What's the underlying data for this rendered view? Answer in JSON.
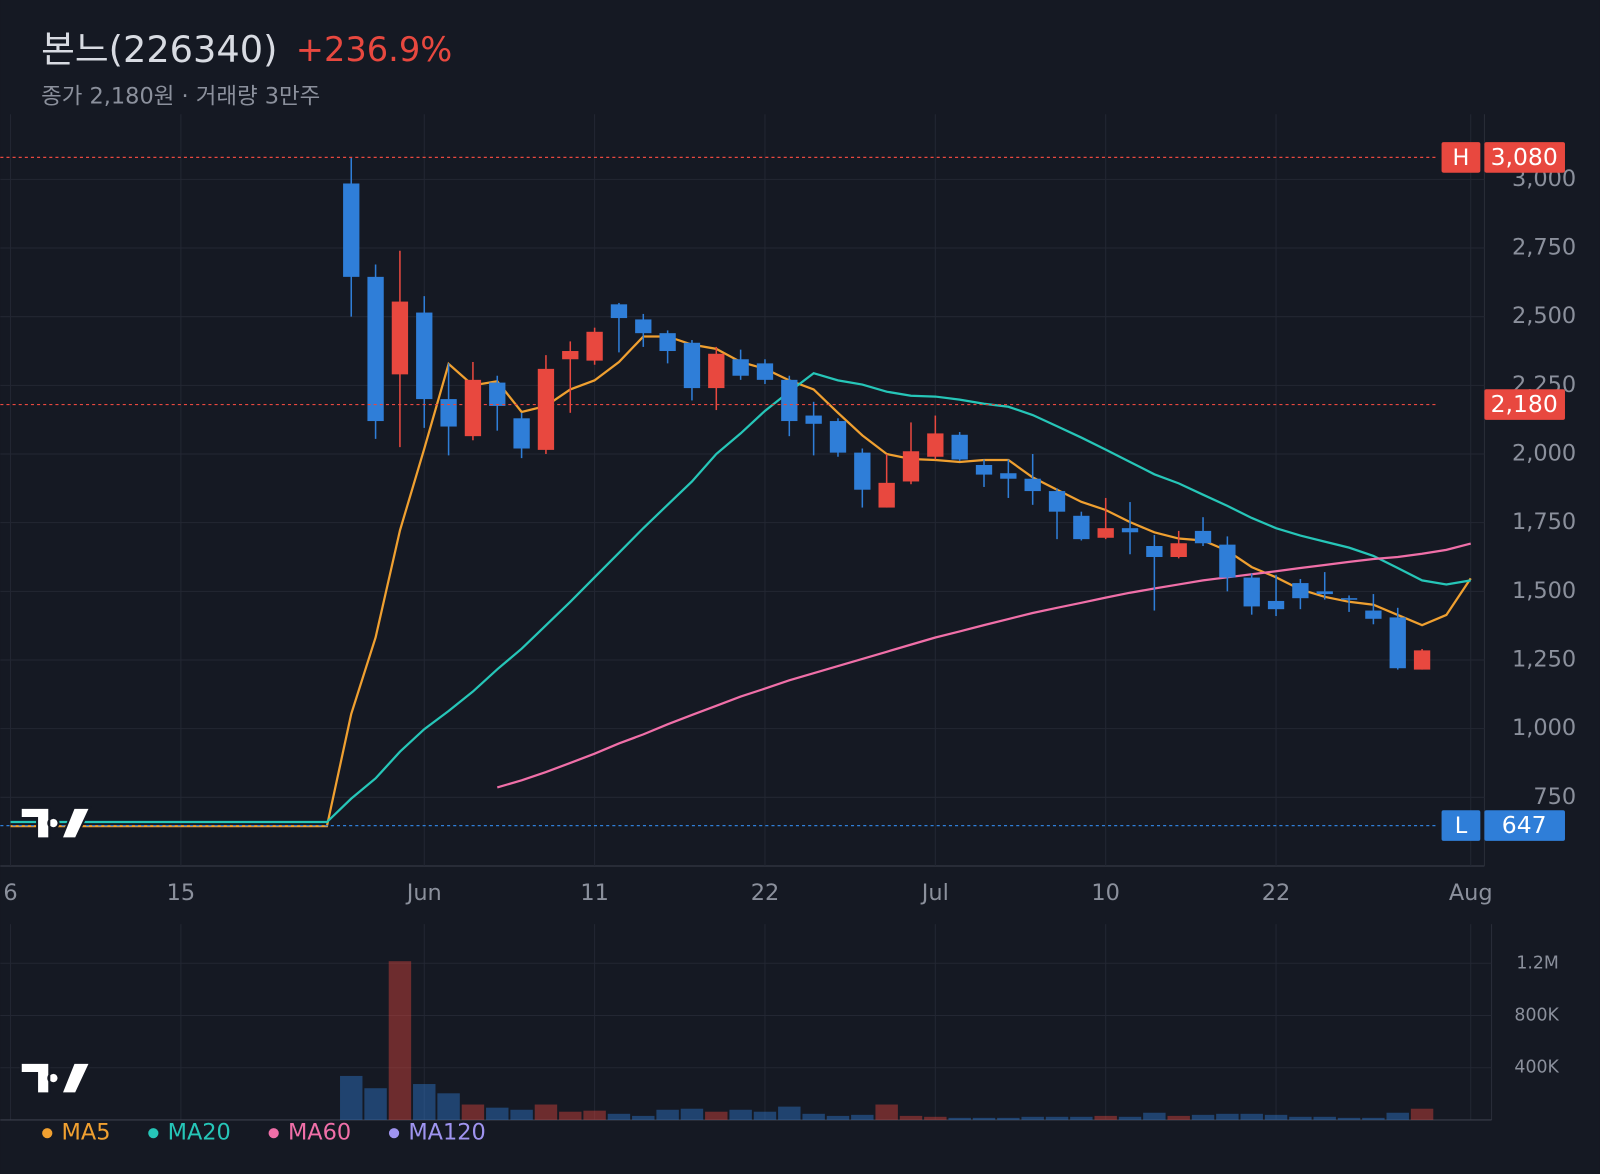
{
  "chart_data": [
    {
      "type": "candlestick",
      "title": "본느(226340)",
      "change": "+236.9%",
      "subtitle": "종가 2,180원 · 거래량 3만주",
      "up_color": "#e8483f",
      "down_color": "#2f7ed8",
      "categories": [
        "6",
        null,
        null,
        null,
        null,
        null,
        null,
        "15",
        null,
        null,
        null,
        null,
        null,
        null,
        null,
        null,
        null,
        "Jun",
        null,
        null,
        null,
        null,
        null,
        null,
        "11",
        null,
        null,
        null,
        null,
        null,
        null,
        "22",
        null,
        null,
        null,
        null,
        null,
        null,
        "Jul",
        null,
        null,
        null,
        null,
        null,
        null,
        "10",
        null,
        null,
        null,
        null,
        null,
        null,
        "22",
        null,
        null,
        null,
        null,
        null,
        null,
        null,
        "Aug"
      ],
      "open": [
        null,
        null,
        null,
        null,
        null,
        null,
        null,
        null,
        null,
        null,
        null,
        null,
        null,
        null,
        2985,
        2645,
        2290,
        2515,
        2200,
        2065,
        2260,
        2130,
        2015,
        2345,
        2340,
        2545,
        2490,
        2440,
        2405,
        2240,
        2345,
        2330,
        2270,
        2140,
        2120,
        2005,
        1805,
        1900,
        1990,
        2070,
        1960,
        1930,
        1910,
        1865,
        1775,
        1695,
        1730,
        1665,
        1625,
        1720,
        1670,
        1550,
        1465,
        1530,
        1500,
        1475,
        1430,
        1405,
        1215,
        null,
        null
      ],
      "high": [
        null,
        null,
        null,
        null,
        null,
        null,
        null,
        null,
        null,
        null,
        null,
        null,
        null,
        null,
        3080,
        2690,
        2740,
        2575,
        2330,
        2335,
        2285,
        2150,
        2360,
        2410,
        2460,
        2550,
        2510,
        2450,
        2415,
        2390,
        2380,
        2345,
        2285,
        2190,
        2130,
        2020,
        2000,
        2115,
        2140,
        2080,
        1980,
        1980,
        2000,
        1875,
        1790,
        1840,
        1825,
        1705,
        1720,
        1770,
        1700,
        1565,
        1560,
        1545,
        1570,
        1485,
        1490,
        1440,
        1290,
        null,
        null
      ],
      "low": [
        null,
        null,
        null,
        null,
        null,
        null,
        null,
        null,
        null,
        null,
        null,
        null,
        null,
        null,
        2500,
        2055,
        2025,
        2095,
        1995,
        2050,
        2085,
        1985,
        2000,
        2150,
        2325,
        2370,
        2390,
        2330,
        2195,
        2160,
        2270,
        2255,
        2065,
        1995,
        1990,
        1805,
        1805,
        1890,
        1980,
        1975,
        1880,
        1840,
        1815,
        1690,
        1685,
        1690,
        1635,
        1430,
        1620,
        1665,
        1500,
        1415,
        1410,
        1435,
        1470,
        1425,
        1380,
        1215,
        1215,
        null,
        null
      ],
      "close": [
        null,
        null,
        null,
        null,
        null,
        null,
        null,
        null,
        null,
        null,
        null,
        null,
        null,
        null,
        2645,
        2120,
        2555,
        2200,
        2100,
        2270,
        2175,
        2020,
        2310,
        2375,
        2445,
        2495,
        2440,
        2375,
        2240,
        2365,
        2285,
        2270,
        2120,
        2110,
        2005,
        1870,
        1895,
        2010,
        2075,
        1980,
        1925,
        1910,
        1865,
        1790,
        1690,
        1730,
        1715,
        1625,
        1675,
        1675,
        1550,
        1445,
        1435,
        1475,
        1490,
        1470,
        1400,
        1220,
        1285,
        null,
        null
      ],
      "series": [
        {
          "name": "MA5",
          "color": "#f0a030",
          "values": [
            645,
            645,
            645,
            645,
            645,
            645,
            645,
            645,
            645,
            645,
            645,
            645,
            645,
            645,
            1053,
            1332,
            1722,
            2019,
            2328,
            2250,
            2265,
            2153,
            2175,
            2235,
            2268,
            2335,
            2428,
            2428,
            2398,
            2383,
            2335,
            2310,
            2268,
            2235,
            2150,
            2068,
            2000,
            1982,
            1978,
            1971,
            1978,
            1978,
            1915,
            1870,
            1826,
            1796,
            1752,
            1715,
            1692,
            1685,
            1648,
            1588,
            1551,
            1507,
            1480,
            1462,
            1451,
            1414,
            1377,
            1414,
            1547
          ]
        },
        {
          "name": "MA20",
          "color": "#26c6b8",
          "values": [
            660,
            660,
            660,
            660,
            660,
            660,
            660,
            660,
            660,
            660,
            660,
            660,
            660,
            660,
            745,
            819,
            916,
            998,
            1064,
            1135,
            1216,
            1291,
            1376,
            1462,
            1551,
            1640,
            1730,
            1815,
            1900,
            2000,
            2075,
            2157,
            2227,
            2294,
            2268,
            2253,
            2227,
            2212,
            2209,
            2198,
            2183,
            2172,
            2142,
            2101,
            2060,
            2016,
            1971,
            1926,
            1893,
            1852,
            1811,
            1767,
            1730,
            1703,
            1681,
            1659,
            1629,
            1585,
            1540,
            1525,
            1540
          ]
        },
        {
          "name": "MA60",
          "color": "#f06fa8",
          "values": [
            null,
            null,
            null,
            null,
            null,
            null,
            null,
            null,
            null,
            null,
            null,
            null,
            null,
            null,
            null,
            null,
            null,
            null,
            null,
            null,
            786,
            812,
            842,
            875,
            909,
            946,
            979,
            1016,
            1050,
            1083,
            1117,
            1146,
            1176,
            1202,
            1228,
            1254,
            1280,
            1306,
            1332,
            1354,
            1377,
            1399,
            1421,
            1440,
            1458,
            1477,
            1495,
            1510,
            1525,
            1540,
            1551,
            1562,
            1573,
            1585,
            1596,
            1607,
            1618,
            1625,
            1637,
            1651,
            1674
          ]
        },
        {
          "name": "MA120",
          "color": "#9f94f0",
          "values": [
            null,
            null,
            null,
            null,
            null,
            null,
            null,
            null,
            null,
            null,
            null,
            null,
            null,
            null,
            null,
            null,
            null,
            null,
            null,
            null,
            null,
            null,
            null,
            null,
            null,
            null,
            null,
            null,
            null,
            null,
            null,
            null,
            null,
            null,
            null,
            null,
            null,
            null,
            null,
            null,
            null,
            null,
            null,
            null,
            null,
            null,
            null,
            null,
            null,
            null,
            null,
            null,
            null,
            null,
            null,
            null,
            null,
            null,
            null,
            null,
            null
          ]
        }
      ],
      "ylim": [
        500,
        3200
      ],
      "yticks": [
        750,
        {
          "value": 1000,
          "label": "1,000"
        },
        {
          "value": 1250,
          "label": "1,250"
        },
        {
          "value": 1500,
          "label": "1,500"
        },
        {
          "value": 1750,
          "label": "1,750"
        },
        {
          "value": 2000,
          "label": "2,000"
        },
        {
          "value": 2250,
          "label": "2,250"
        },
        {
          "value": 2500,
          "label": "2,500"
        },
        {
          "value": 2750,
          "label": "2,750"
        },
        {
          "value": 3000,
          "label": "3,000"
        }
      ],
      "grid": true,
      "price_lines": [
        {
          "name": "H",
          "value": 3080,
          "value_label": "3,080",
          "color": "#e8483f"
        },
        {
          "value": 2180,
          "value_label": "2,180",
          "color": "#e8483f"
        },
        {
          "name": "L",
          "value": 647,
          "color": "#2f7ed8"
        }
      ]
    },
    {
      "type": "bar",
      "values": [
        null,
        null,
        null,
        null,
        null,
        null,
        null,
        null,
        null,
        null,
        null,
        null,
        null,
        null,
        337000,
        243000,
        1216000,
        275000,
        204000,
        118000,
        94000,
        78000,
        118000,
        63000,
        71000,
        47000,
        31000,
        78000,
        86000,
        63000,
        78000,
        63000,
        102000,
        47000,
        31000,
        39000,
        118000,
        31000,
        24000,
        16000,
        16000,
        16000,
        24000,
        24000,
        24000,
        31000,
        24000,
        55000,
        31000,
        39000,
        47000,
        47000,
        39000,
        24000,
        24000,
        16000,
        16000,
        55000,
        86000,
        null,
        null
      ],
      "ylim": [
        0,
        1500000
      ],
      "yticks": [
        {
          "value": 400000,
          "label": "400K"
        },
        {
          "value": 800000,
          "label": "800K"
        },
        {
          "value": 1200000,
          "label": "1.2M"
        }
      ],
      "grid": true
    }
  ]
}
